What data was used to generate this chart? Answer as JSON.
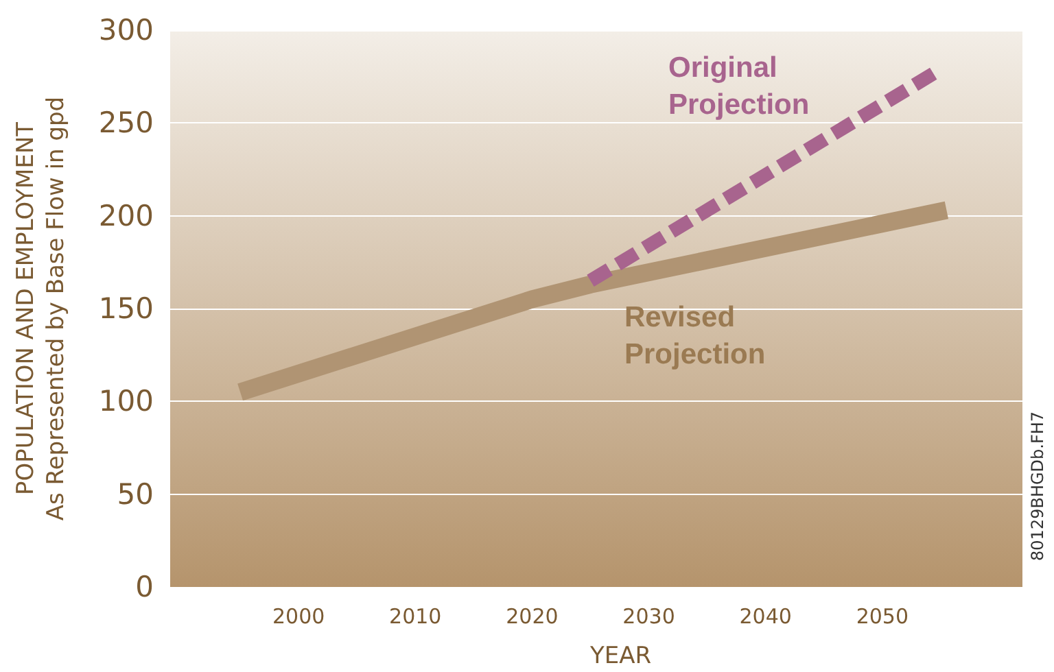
{
  "chart_data": {
    "type": "line",
    "xlabel": "YEAR",
    "ylabel": "POPULATION AND EMPLOYMENT\nAs Represented by Base Flow in gpd",
    "xlim": [
      1989,
      2062
    ],
    "xticks": [
      2000,
      2010,
      2020,
      2030,
      2040,
      2050
    ],
    "ylim": [
      0,
      300
    ],
    "yticks": [
      0,
      50,
      100,
      150,
      200,
      250,
      300
    ],
    "grid": "y",
    "legend": false,
    "marker": "none",
    "series": [
      {
        "name": "Revised Projection",
        "color": "#b09473",
        "line_style": "solid",
        "x": [
          1995,
          2020,
          2025,
          2055.5
        ],
        "values": [
          105,
          155,
          163,
          203
        ]
      },
      {
        "name": "Original Projection",
        "color": "#a8648e",
        "line_style": "dashed",
        "x": [
          2025,
          2055
        ],
        "values": [
          165,
          279
        ]
      }
    ],
    "annotations": [
      "80129BHGDb.FH7"
    ]
  }
}
